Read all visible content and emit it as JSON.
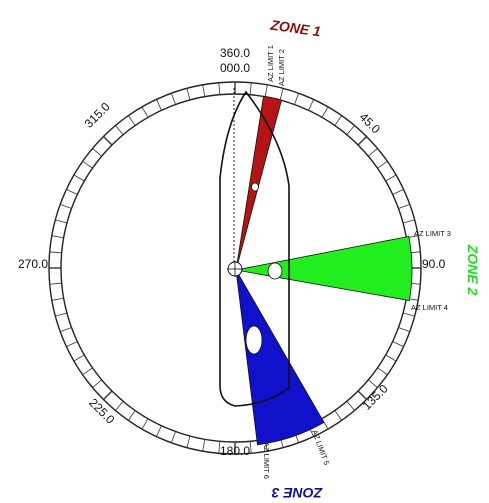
{
  "headings": {
    "north_top": "360.0",
    "north_bottom": "000.0",
    "ne": "45.0",
    "east": "90.0",
    "se": "135.0",
    "south": "180.0",
    "sw": "225.0",
    "west": "270.0",
    "nw": "315.0"
  },
  "azimuth_limits": {
    "limit_1": "AZ LIMIT 1",
    "limit_2": "AZ LIMIT 2",
    "limit_3": "AZ LIMIT 3",
    "limit_4": "AZ LIMIT 4",
    "limit_5": "AZ LIMIT 5",
    "limit_6": "AZ LIMIT 6"
  },
  "zones": [
    {
      "name": "ZONE 1",
      "color": "#b51414",
      "from_deg": 9,
      "to_deg": 15
    },
    {
      "name": "ZONE 2",
      "color": "#22ee1f",
      "from_deg": 79,
      "to_deg": 100
    },
    {
      "name": "ZONE 3",
      "color": "#1111cc",
      "from_deg": 150,
      "to_deg": 173
    }
  ],
  "colors": {
    "ring": "#222222",
    "zone_1_label": "#8b0d0d",
    "zone_2_label": "#16e616",
    "zone_3_label": "#10109a"
  }
}
